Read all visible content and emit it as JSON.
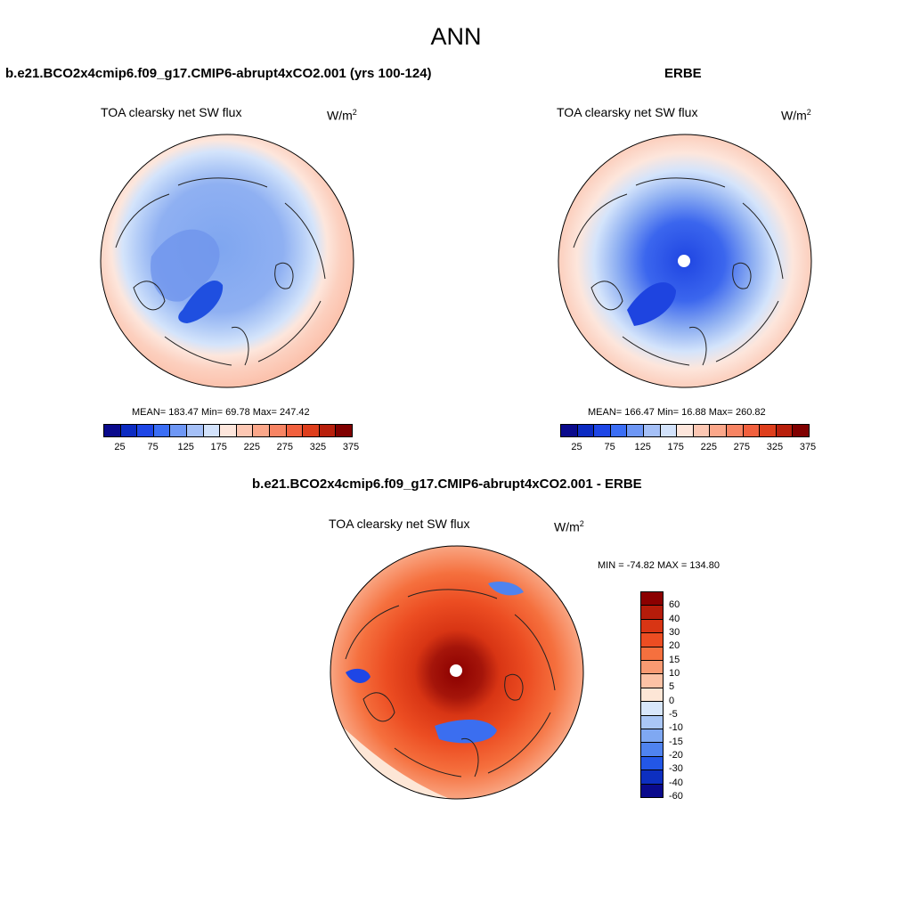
{
  "page_title": "ANN",
  "panels": [
    {
      "title": "b.e21.BCO2x4cmip6.f09_g17.CMIP6-abrupt4xCO2.001 (yrs 100-124)",
      "variable": "TOA clearsky net SW flux",
      "unit_base": "W/m",
      "unit_exp": "2",
      "stats": "MEAN= 183.47  Min=  69.78  Max= 247.42",
      "mean": 183.47,
      "min": 69.78,
      "max": 247.42
    },
    {
      "title": "ERBE",
      "variable": "TOA clearsky net SW flux",
      "unit_base": "W/m",
      "unit_exp": "2",
      "stats": "MEAN= 166.47  Min=  16.88  Max= 260.82",
      "mean": 166.47,
      "min": 16.88,
      "max": 260.82
    },
    {
      "title": "b.e21.BCO2x4cmip6.f09_g17.CMIP6-abrupt4xCO2.001 - ERBE",
      "variable": "TOA clearsky net SW flux",
      "unit_base": "W/m",
      "unit_exp": "2",
      "stats": "MIN = -74.82 MAX = 134.80",
      "min": -74.82,
      "max": 134.8
    }
  ],
  "colorbar_abs": {
    "ticks": [
      "25",
      "75",
      "125",
      "175",
      "225",
      "275",
      "325",
      "375"
    ],
    "colors": [
      "#0a0a8c",
      "#0c2bc2",
      "#1e46e6",
      "#3b6ef5",
      "#6e97f5",
      "#a5c0f7",
      "#d2e2fb",
      "#fde6dc",
      "#fcc7b3",
      "#fba78a",
      "#f78463",
      "#f1603e",
      "#de3e1c",
      "#b81f0c",
      "#800000"
    ]
  },
  "colorbar_diff": {
    "labels": [
      "60",
      "40",
      "30",
      "20",
      "15",
      "10",
      "5",
      "0",
      "-5",
      "-10",
      "-15",
      "-20",
      "-30",
      "-40",
      "-60"
    ],
    "colors": [
      "#8b0000",
      "#b51c0a",
      "#d83514",
      "#ec4d22",
      "#f5703e",
      "#f99a72",
      "#fcc2a5",
      "#fde6d6",
      "#d8e7fb",
      "#aac7f6",
      "#7fa8f2",
      "#4f83ef",
      "#2357e6",
      "#0d2fc0",
      "#0a0a8c"
    ]
  }
}
